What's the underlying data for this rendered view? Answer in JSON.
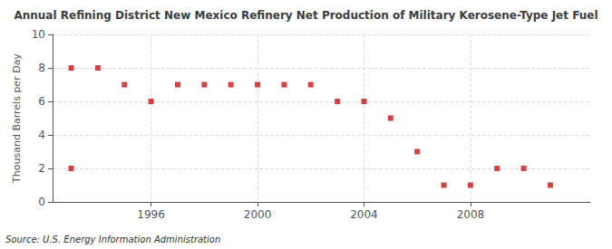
{
  "chart_data": {
    "type": "scatter",
    "title": "Annual Refining District New Mexico Refinery Net Production of Military Kerosene-Type Jet Fuel",
    "ylabel": "Thousand Barrels per Day",
    "source": "Source: U.S. Energy Information Administration",
    "x": [
      1993,
      1993,
      1994,
      1995,
      1996,
      1997,
      1998,
      1999,
      2000,
      2001,
      2002,
      2003,
      2004,
      2005,
      2006,
      2007,
      2008,
      2009,
      2010,
      2011
    ],
    "values": [
      8,
      2,
      8,
      7,
      6,
      7,
      7,
      7,
      7,
      7,
      7,
      6,
      6,
      5,
      3,
      1,
      1,
      2,
      2,
      1
    ],
    "color": "#cc1111",
    "marker": "square",
    "xlim": [
      1992.3,
      2012.5
    ],
    "xticks": [
      1996,
      2000,
      2004,
      2008
    ],
    "ylim": [
      0,
      10
    ],
    "yticks": [
      0,
      2,
      4,
      6,
      8,
      10
    ],
    "grid": true
  }
}
